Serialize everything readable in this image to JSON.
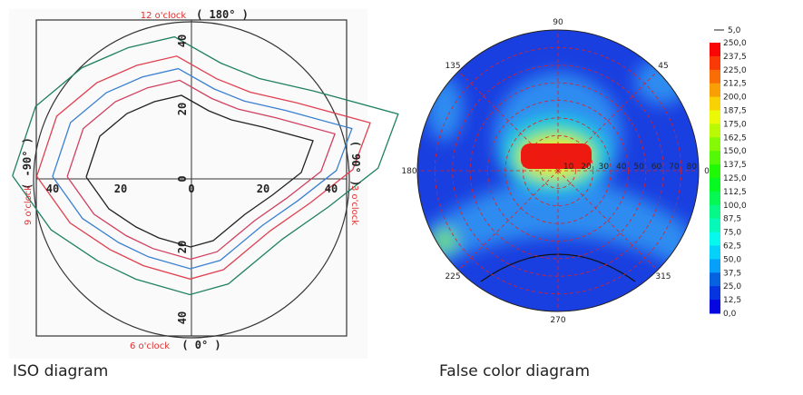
{
  "iso_diagram": {
    "caption": "ISO diagram",
    "top_label": "12 o'clock",
    "top_angle": "( 180° )",
    "left_label": "9 o'clock",
    "left_angle": "( -90° )",
    "right_label": "3 o'clock",
    "right_angle": "( 90° )",
    "bottom_label": "6 o'clock",
    "bottom_angle": "( 0° )",
    "x_ticks": [
      "40",
      "20",
      "0",
      "20",
      "40"
    ],
    "y_ticks": [
      "40",
      "20",
      "0",
      "20",
      "40"
    ]
  },
  "false_color_diagram": {
    "caption": "False color diagram",
    "angle_labels": [
      "90",
      "45",
      "0",
      "315",
      "270",
      "225",
      "180",
      "135"
    ],
    "radius_labels": [
      "10",
      "20",
      "30",
      "40",
      "50",
      "60",
      "70",
      "80"
    ],
    "legend_title": "5,0",
    "legend_labels": [
      "250,0",
      "237,5",
      "225,0",
      "212,5",
      "200,0",
      "187,5",
      "175,0",
      "162,5",
      "150,0",
      "137,5",
      "125,0",
      "112,5",
      "100,0",
      "87,5",
      "75,0",
      "62,5",
      "50,0",
      "37,5",
      "25,0",
      "12,5",
      "0,0"
    ]
  }
}
